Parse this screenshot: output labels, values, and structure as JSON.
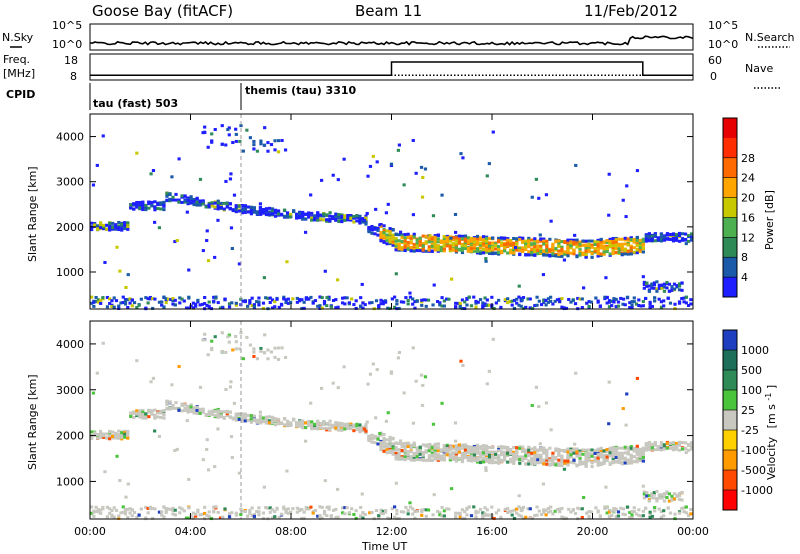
{
  "header": {
    "radar": "Goose Bay (fitACF)",
    "beam": "Beam 11",
    "date": "11/Feb/2012"
  },
  "noise_panel": {
    "left_label": "N.Sky",
    "right_label": "N.Search",
    "left_ticks": [
      "10^5",
      "10^0"
    ],
    "right_ticks": [
      "10^5",
      "10^0"
    ],
    "series_values": {
      "start_level": 0.2,
      "late_level": 0.45,
      "late_start_hour": 21.5
    }
  },
  "freq_panel": {
    "left_label_line1": "Freq.",
    "left_label_line2": "[MHz]",
    "right_label": "Nave",
    "left_ticks": [
      "18",
      "8"
    ],
    "right_ticks": [
      "60",
      "0"
    ],
    "freq_mhz": [
      {
        "start_hour": 0,
        "end_hour": 24,
        "value": 10
      }
    ],
    "nave_steps": [
      {
        "start_hour": 0,
        "end_hour": 12,
        "value": 12
      },
      {
        "start_hour": 12,
        "end_hour": 22,
        "value": 45
      },
      {
        "start_hour": 22,
        "end_hour": 24,
        "value": 12
      }
    ]
  },
  "cpid_panel": {
    "label": "CPID",
    "programs": [
      {
        "name": "tau (fast) 503",
        "start_hour": 0
      },
      {
        "name": "themis (tau) 3310",
        "start_hour": 6
      }
    ]
  },
  "chart_data": [
    {
      "type": "heatmap",
      "parameter": "power",
      "ylabel": "Slant Range [km]",
      "xlabel": "Time UT",
      "x_ticks": [
        "00:00",
        "04:00",
        "08:00",
        "12:00",
        "16:00",
        "20:00",
        "00:00"
      ],
      "y_ticks": [
        1000,
        2000,
        3000,
        4000
      ],
      "ylim": [
        180,
        4500
      ],
      "xlim_hours": [
        0,
        24
      ],
      "colorbar_label": "Power [dB]",
      "colorbar_ticks": [
        "4",
        "8",
        "12",
        "16",
        "20",
        "24",
        "28"
      ],
      "colorbar_colors": [
        "#1e1eff",
        "#1a5aa8",
        "#2e8b57",
        "#4caf50",
        "#c8c800",
        "#ffa500",
        "#ff6a00",
        "#ff2d00",
        "#e60000"
      ],
      "scatter_regions": [
        {
          "description": "main echo band",
          "start_hour": 0,
          "end_hour": 24,
          "range_start_km": 2050,
          "range_end_km": 1700,
          "dominant_level": "low",
          "peak_hours": [
            12,
            22
          ]
        },
        {
          "description": "high range echoes",
          "start_hour": 4.5,
          "end_hour": 8.0,
          "range_start_km": 3700,
          "range_end_km": 4300,
          "dominant_level": "low"
        },
        {
          "description": "near-range echoes",
          "start_hour": 0,
          "end_hour": 24,
          "range_start_km": 200,
          "range_end_km": 450,
          "dominant_level": "low"
        },
        {
          "description": "late low-range patch",
          "start_hour": 22,
          "end_hour": 23.6,
          "range_start_km": 600,
          "range_end_km": 800,
          "dominant_level": "low"
        }
      ]
    },
    {
      "type": "heatmap",
      "parameter": "velocity",
      "ylabel": "Slant Range [km]",
      "xlabel": "Time UT",
      "x_ticks": [
        "00:00",
        "04:00",
        "08:00",
        "12:00",
        "16:00",
        "20:00",
        "00:00"
      ],
      "y_ticks": [
        1000,
        2000,
        3000,
        4000
      ],
      "ylim": [
        180,
        4500
      ],
      "xlim_hours": [
        0,
        24
      ],
      "colorbar_label": "Velocity",
      "colorbar_unit": "[m s",
      "colorbar_unit_exp": "-1",
      "colorbar_unit_end": "]",
      "colorbar_ticks": [
        "1000",
        "500",
        "100",
        "25",
        "-25",
        "-100",
        "-500",
        "-1000"
      ],
      "colorbar_colors": [
        "#1e3fbf",
        "#1e6f5a",
        "#2e8b57",
        "#4ac43a",
        "#c8c8c0",
        "#ffd000",
        "#ff9a00",
        "#ff4a00",
        "#ff0000"
      ],
      "dominant_class": "ground scatter (grey)"
    }
  ]
}
